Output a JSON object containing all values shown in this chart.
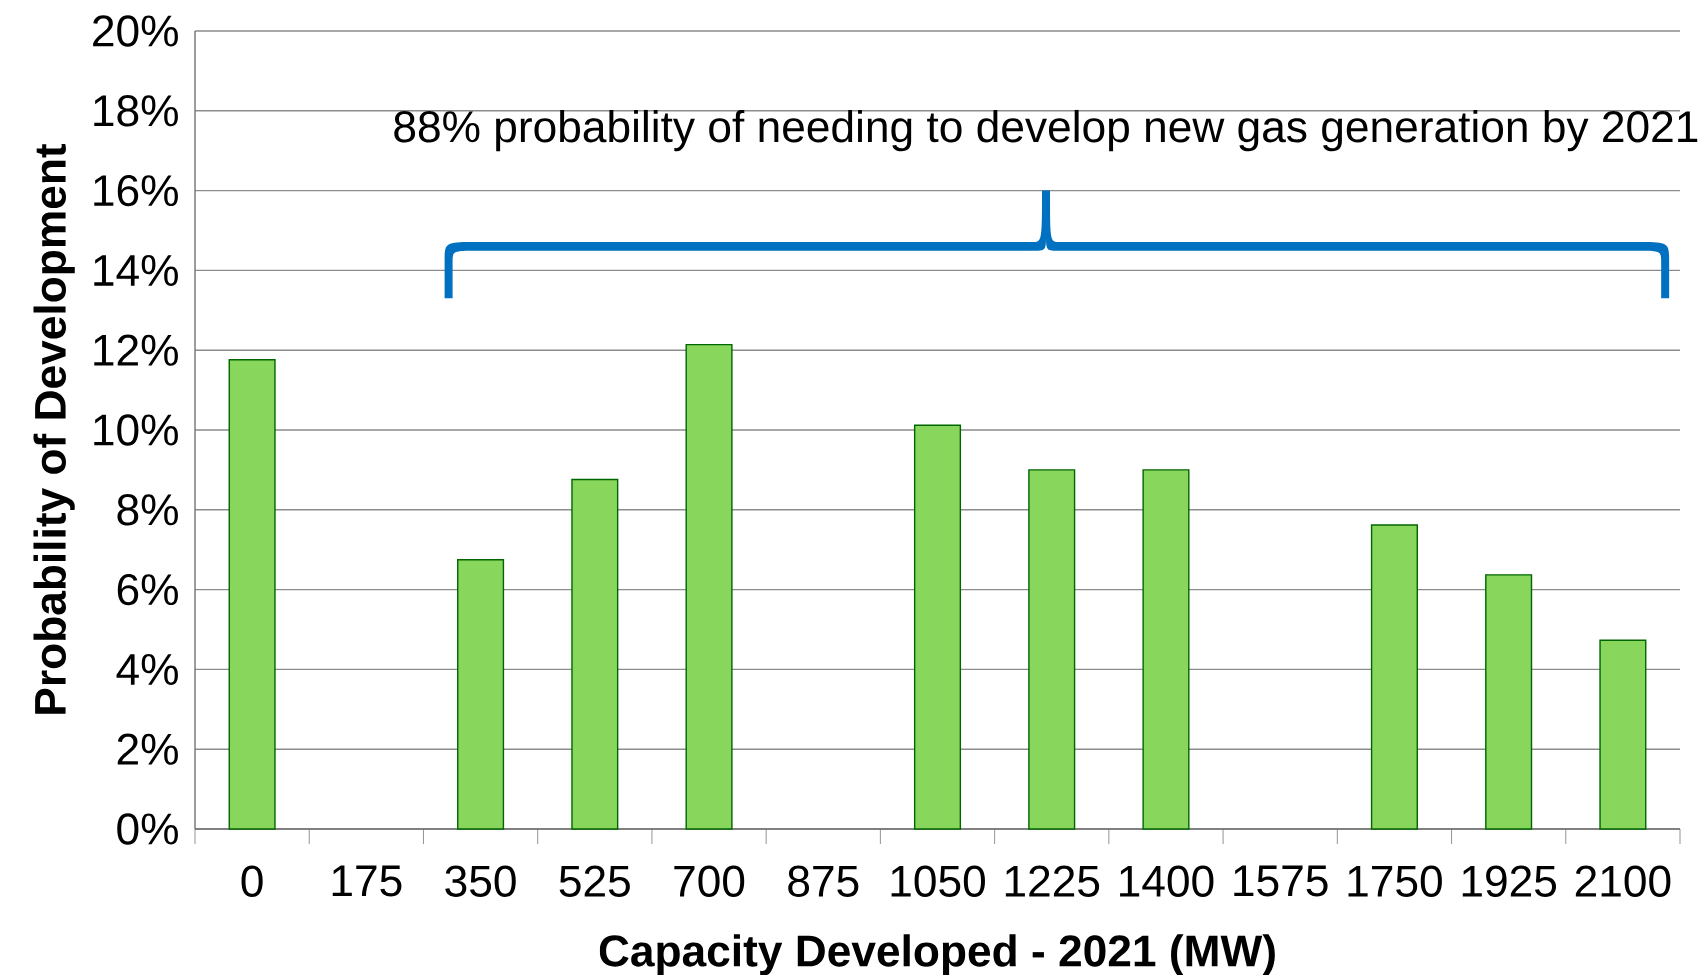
{
  "chart_data": {
    "type": "bar",
    "xlabel": "Capacity Developed - 2021 (MW)",
    "ylabel": "Probability of Development",
    "categories": [
      "0",
      "175",
      "350",
      "525",
      "700",
      "875",
      "1050",
      "1225",
      "1400",
      "1575",
      "1750",
      "1925",
      "2100"
    ],
    "values": [
      11.76,
      null,
      6.75,
      8.76,
      12.14,
      null,
      10.12,
      9.0,
      9.0,
      null,
      7.62,
      6.37,
      4.73
    ],
    "color": "#88d65c",
    "ylim": [
      0,
      20
    ],
    "yticks": [
      {
        "value": 0,
        "label": "0%"
      },
      {
        "value": 2,
        "label": "2%"
      },
      {
        "value": 4,
        "label": "4%"
      },
      {
        "value": 6,
        "label": "6%"
      },
      {
        "value": 8,
        "label": "8%"
      },
      {
        "value": 10,
        "label": "10%"
      },
      {
        "value": 12,
        "label": "12%"
      },
      {
        "value": 14,
        "label": "14%"
      },
      {
        "value": 16,
        "label": "16%"
      },
      {
        "value": 18,
        "label": "18%"
      },
      {
        "value": 20,
        "label": "20%"
      }
    ],
    "grid": "y",
    "annotations": [
      "88% probability of needing to develop new gas generation by 2021"
    ]
  }
}
